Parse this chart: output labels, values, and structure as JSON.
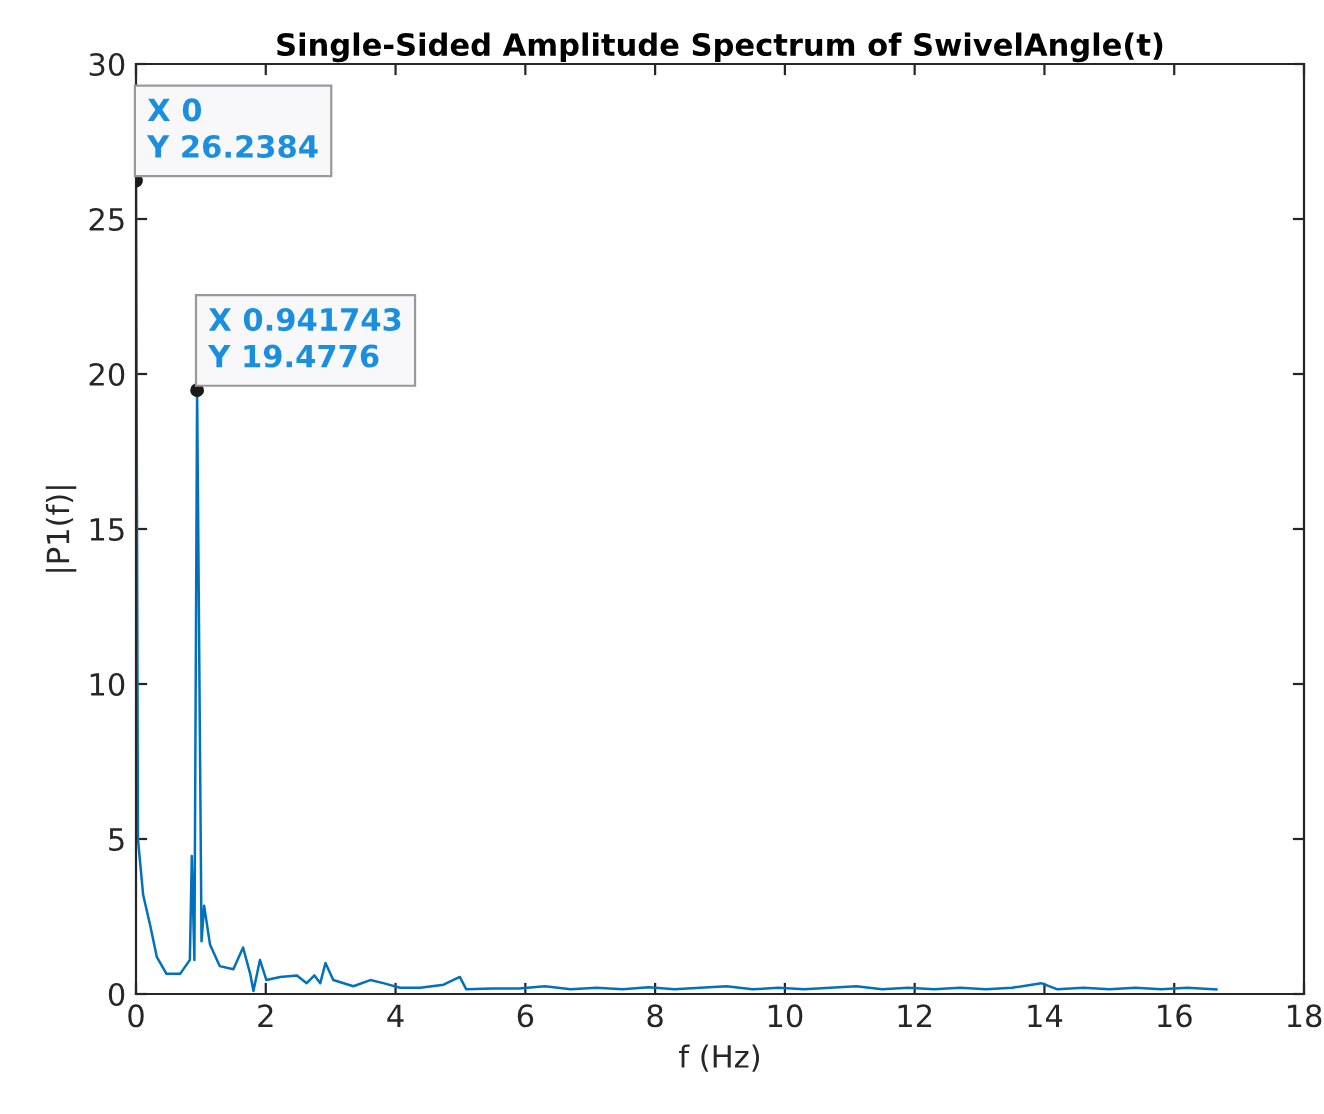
{
  "chart_data": {
    "type": "line",
    "title": "Single-Sided Amplitude Spectrum of SwivelAngle(t)",
    "xlabel": "f (Hz)",
    "ylabel": "|P1(f)|",
    "x": [
      0,
      0.03,
      0.11,
      0.22,
      0.32,
      0.47,
      0.68,
      0.83,
      0.86,
      0.9,
      0.941743,
      1.01,
      1.05,
      1.14,
      1.29,
      1.5,
      1.65,
      1.76,
      1.81,
      1.91,
      2.01,
      2.22,
      2.48,
      2.63,
      2.75,
      2.84,
      2.92,
      3.04,
      3.35,
      3.61,
      3.81,
      4.07,
      4.38,
      4.74,
      4.99,
      5.09,
      5.5,
      5.9,
      6.3,
      6.7,
      7.1,
      7.5,
      7.9,
      8.3,
      8.7,
      9.1,
      9.5,
      9.9,
      10.3,
      10.7,
      11.1,
      11.5,
      11.9,
      12.3,
      12.7,
      13.1,
      13.5,
      13.95,
      14.2,
      14.6,
      15.0,
      15.4,
      15.8,
      16.2,
      16.65
    ],
    "series": [
      {
        "color": "#0072bd",
        "values": [
          26.2384,
          5.0,
          3.2,
          2.2,
          1.2,
          0.65,
          0.65,
          1.1,
          4.45,
          1.1,
          19.4776,
          1.7,
          2.85,
          1.6,
          0.9,
          0.8,
          1.5,
          0.65,
          0.1,
          1.1,
          0.45,
          0.55,
          0.6,
          0.35,
          0.6,
          0.35,
          1.0,
          0.45,
          0.25,
          0.45,
          0.35,
          0.2,
          0.2,
          0.3,
          0.55,
          0.15,
          0.18,
          0.18,
          0.25,
          0.15,
          0.2,
          0.15,
          0.22,
          0.15,
          0.2,
          0.25,
          0.15,
          0.2,
          0.15,
          0.2,
          0.25,
          0.15,
          0.2,
          0.15,
          0.2,
          0.15,
          0.2,
          0.35,
          0.15,
          0.2,
          0.15,
          0.2,
          0.15,
          0.2,
          0.15
        ]
      }
    ],
    "xlim": [
      0,
      18
    ],
    "xticks": [
      0,
      2,
      4,
      6,
      8,
      10,
      12,
      14,
      16,
      18
    ],
    "ylim": [
      0,
      30
    ],
    "yticks": [
      0,
      5,
      10,
      15,
      20,
      25,
      30
    ],
    "grid": false,
    "legend": false,
    "marker": "none",
    "line_style": "solid",
    "annotations": [
      {
        "text": "X 0\nY 26.2384",
        "x": 0,
        "y": 26.2384
      },
      {
        "text": "X 0.941743\nY 19.4776",
        "x": 0.941743,
        "y": 19.4776
      }
    ]
  }
}
